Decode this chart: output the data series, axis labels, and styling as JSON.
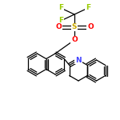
{
  "bg_color": "#ffffff",
  "bond_color": "#000000",
  "atom_colors": {
    "F": "#99cc00",
    "O": "#ff0000",
    "S": "#ccaa00",
    "N": "#4444ff"
  },
  "font_size_atom": 6.5,
  "lw": 0.9
}
